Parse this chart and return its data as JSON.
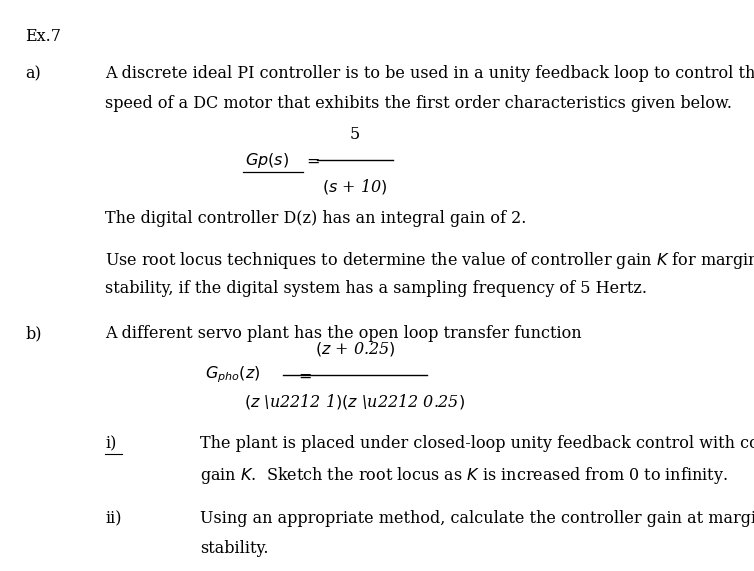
{
  "background_color": "#ffffff",
  "fig_width": 7.54,
  "fig_height": 5.71,
  "title": "Ex.7",
  "part_a_label": "a)",
  "part_a_text1": "A discrete ideal PI controller is to be used in a unity feedback loop to control the",
  "part_a_text2": "speed of a DC motor that exhibits the first order characteristics given below.",
  "gp_numerator": "5",
  "gp_denominator": "(σ + 10)",
  "digital_controller_text": "The digital controller D(z) has an integral gain of 2.",
  "root_locus_text1": "Use root locus techniques to determine the value of controller gain K for marginal",
  "root_locus_text2": "stability, if the digital system has a sampling frequency of 5 Hertz.",
  "part_b_label": "b)",
  "part_b_text": "A different servo plant has the open loop transfer function",
  "gpho_numerator": "(z + 0.25)",
  "gpho_denominator": "(z − 1)(z − 0.25)",
  "sub_i_label": "i)",
  "sub_i_text1": "The plant is placed under closed-loop unity feedback control with controller",
  "sub_i_text2": "gain K.  Sketch the root locus as K is increased from 0 to infinity.",
  "sub_ii_label": "ii)",
  "sub_ii_text1": "Using an appropriate method, calculate the controller gain at marginal",
  "sub_ii_text2": "stability.",
  "font_size": 11.5,
  "text_color": "#000000"
}
